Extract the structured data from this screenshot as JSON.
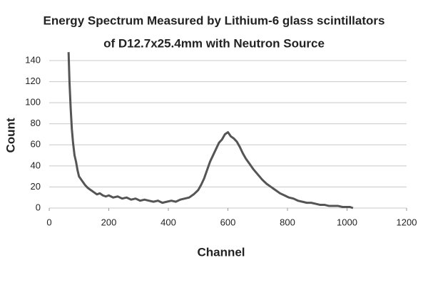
{
  "chart_data": {
    "type": "line",
    "title": [
      "Energy Spectrum Measured by Lithium-6 glass scintillators",
      "of D12.7x25.4mm with Neutron Source"
    ],
    "x_label": "Channel",
    "y_label": "Count",
    "x": [
      65,
      68,
      72,
      76,
      80,
      85,
      90,
      95,
      100,
      110,
      120,
      130,
      140,
      150,
      160,
      170,
      180,
      190,
      200,
      215,
      230,
      245,
      260,
      275,
      290,
      305,
      320,
      335,
      350,
      365,
      380,
      395,
      410,
      425,
      440,
      455,
      470,
      485,
      500,
      510,
      520,
      530,
      540,
      550,
      560,
      570,
      580,
      590,
      600,
      610,
      620,
      630,
      640,
      650,
      660,
      670,
      685,
      700,
      715,
      730,
      745,
      760,
      775,
      790,
      805,
      820,
      835,
      850,
      865,
      880,
      895,
      910,
      925,
      940,
      955,
      970,
      985,
      1000,
      1010,
      1020
    ],
    "series": [
      {
        "name": "Count",
        "color": "#555555",
        "values": [
          148,
          120,
          95,
          75,
          62,
          50,
          44,
          36,
          30,
          26,
          22,
          19,
          17,
          15,
          13,
          14,
          12,
          11,
          12,
          10,
          11,
          9,
          10,
          8,
          9,
          7,
          8,
          7,
          6,
          7,
          5,
          6,
          7,
          6,
          8,
          9,
          10,
          13,
          17,
          22,
          28,
          36,
          44,
          50,
          56,
          62,
          65,
          70,
          72,
          68,
          66,
          63,
          58,
          52,
          47,
          43,
          37,
          32,
          27,
          23,
          20,
          17,
          14,
          12,
          10,
          9,
          7,
          6,
          5,
          5,
          4,
          3,
          3,
          2,
          2,
          2,
          1,
          1,
          1,
          0
        ]
      }
    ],
    "xlim": [
      0,
      1200
    ],
    "xticks": [
      0,
      200,
      400,
      600,
      800,
      1000,
      1200
    ],
    "ylim": [
      0,
      140
    ],
    "yticks": [
      0,
      20,
      40,
      60,
      80,
      100,
      120,
      140
    ],
    "grid": true
  }
}
